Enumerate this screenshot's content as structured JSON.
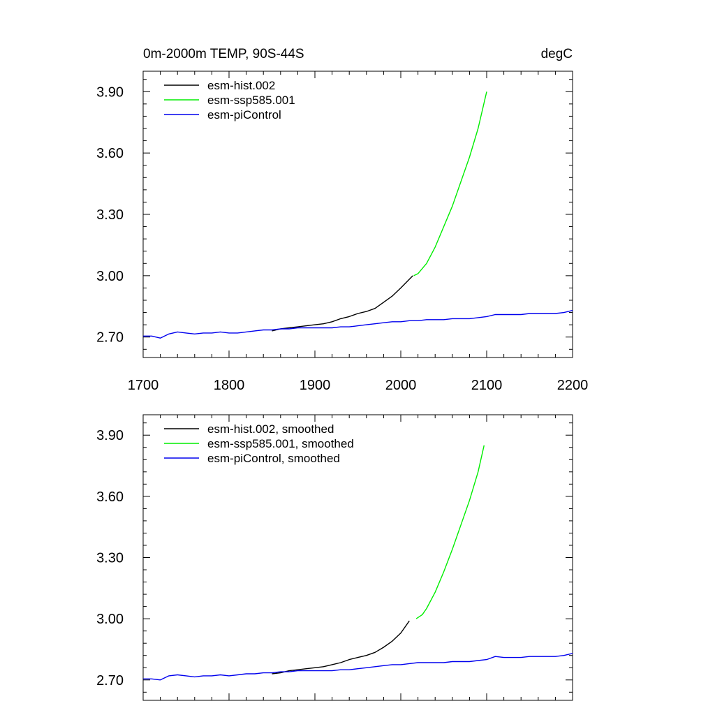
{
  "chart_data": [
    {
      "type": "line",
      "title_left": "0m-2000m TEMP, 90S-44S",
      "title_right": "degC",
      "xlim": [
        1700,
        2200
      ],
      "ylim": [
        2.6,
        4.0
      ],
      "x_ticks": [
        1700,
        1800,
        1900,
        2000,
        2100,
        2200
      ],
      "x_tick_labels": [
        "1700",
        "1800",
        "1900",
        "2000",
        "2100",
        "2200"
      ],
      "y_ticks": [
        2.7,
        3.0,
        3.3,
        3.6,
        3.9
      ],
      "y_tick_labels": [
        "2.70",
        "3.00",
        "3.30",
        "3.60",
        "3.90"
      ],
      "legend_position": "top-left",
      "series": [
        {
          "name": "esm-hist.002",
          "color": "#000000",
          "x": [
            1850,
            1860,
            1870,
            1880,
            1890,
            1900,
            1910,
            1920,
            1930,
            1940,
            1950,
            1960,
            1970,
            1980,
            1990,
            2000,
            2014
          ],
          "y": [
            2.73,
            2.74,
            2.745,
            2.75,
            2.755,
            2.76,
            2.765,
            2.775,
            2.79,
            2.8,
            2.815,
            2.825,
            2.84,
            2.87,
            2.9,
            2.94,
            3.0
          ]
        },
        {
          "name": "esm-ssp585.001",
          "color": "#00ee00",
          "x": [
            2015,
            2020,
            2030,
            2040,
            2050,
            2060,
            2070,
            2080,
            2090,
            2100
          ],
          "y": [
            3.0,
            3.01,
            3.06,
            3.14,
            3.24,
            3.34,
            3.46,
            3.58,
            3.72,
            3.9
          ]
        },
        {
          "name": "esm-piControl",
          "color": "#0000ee",
          "x": [
            1700,
            1710,
            1720,
            1730,
            1740,
            1750,
            1760,
            1770,
            1780,
            1790,
            1800,
            1810,
            1820,
            1830,
            1840,
            1850,
            1860,
            1870,
            1880,
            1890,
            1900,
            1910,
            1920,
            1930,
            1940,
            1950,
            1960,
            1970,
            1980,
            1990,
            2000,
            2010,
            2020,
            2030,
            2040,
            2050,
            2060,
            2070,
            2080,
            2090,
            2100,
            2110,
            2120,
            2130,
            2140,
            2150,
            2160,
            2170,
            2180,
            2190,
            2200
          ],
          "y": [
            2.705,
            2.705,
            2.695,
            2.715,
            2.725,
            2.72,
            2.715,
            2.72,
            2.72,
            2.725,
            2.72,
            2.72,
            2.725,
            2.73,
            2.735,
            2.735,
            2.74,
            2.74,
            2.745,
            2.745,
            2.745,
            2.745,
            2.745,
            2.75,
            2.75,
            2.755,
            2.76,
            2.765,
            2.77,
            2.775,
            2.775,
            2.78,
            2.78,
            2.785,
            2.785,
            2.785,
            2.79,
            2.79,
            2.79,
            2.795,
            2.8,
            2.81,
            2.81,
            2.81,
            2.81,
            2.815,
            2.815,
            2.815,
            2.815,
            2.82,
            2.83
          ]
        }
      ]
    },
    {
      "type": "line",
      "xlim": [
        1700,
        2200
      ],
      "ylim": [
        2.6,
        4.0
      ],
      "x_ticks": [
        1700,
        1800,
        1900,
        2000,
        2100,
        2200
      ],
      "y_ticks": [
        2.7,
        3.0,
        3.3,
        3.6,
        3.9
      ],
      "y_tick_labels": [
        "2.70",
        "3.00",
        "3.30",
        "3.60",
        "3.90"
      ],
      "legend_position": "top-left",
      "series": [
        {
          "name": "esm-hist.002, smoothed",
          "color": "#000000",
          "x": [
            1850,
            1860,
            1870,
            1880,
            1890,
            1900,
            1910,
            1920,
            1930,
            1940,
            1950,
            1960,
            1970,
            1980,
            1990,
            2000,
            2010
          ],
          "y": [
            2.73,
            2.735,
            2.745,
            2.75,
            2.755,
            2.76,
            2.765,
            2.775,
            2.785,
            2.8,
            2.81,
            2.82,
            2.835,
            2.86,
            2.89,
            2.93,
            2.99
          ]
        },
        {
          "name": "esm-ssp585.001, smoothed",
          "color": "#00ee00",
          "x": [
            2018,
            2025,
            2030,
            2040,
            2050,
            2060,
            2070,
            2080,
            2090,
            2097
          ],
          "y": [
            3.0,
            3.02,
            3.05,
            3.13,
            3.23,
            3.34,
            3.46,
            3.58,
            3.72,
            3.85
          ]
        },
        {
          "name": "esm-piControl, smoothed",
          "color": "#0000ee",
          "x": [
            1700,
            1710,
            1720,
            1730,
            1740,
            1750,
            1760,
            1770,
            1780,
            1790,
            1800,
            1810,
            1820,
            1830,
            1840,
            1850,
            1860,
            1870,
            1880,
            1890,
            1900,
            1910,
            1920,
            1930,
            1940,
            1950,
            1960,
            1970,
            1980,
            1990,
            2000,
            2010,
            2020,
            2030,
            2040,
            2050,
            2060,
            2070,
            2080,
            2090,
            2100,
            2110,
            2120,
            2130,
            2140,
            2150,
            2160,
            2170,
            2180,
            2190,
            2200
          ],
          "y": [
            2.705,
            2.705,
            2.7,
            2.72,
            2.725,
            2.72,
            2.715,
            2.72,
            2.72,
            2.725,
            2.72,
            2.725,
            2.73,
            2.73,
            2.735,
            2.735,
            2.74,
            2.74,
            2.745,
            2.745,
            2.745,
            2.745,
            2.745,
            2.75,
            2.75,
            2.755,
            2.76,
            2.765,
            2.77,
            2.775,
            2.775,
            2.78,
            2.785,
            2.785,
            2.785,
            2.785,
            2.79,
            2.79,
            2.79,
            2.795,
            2.8,
            2.815,
            2.81,
            2.81,
            2.81,
            2.815,
            2.815,
            2.815,
            2.815,
            2.82,
            2.83
          ]
        }
      ]
    }
  ]
}
